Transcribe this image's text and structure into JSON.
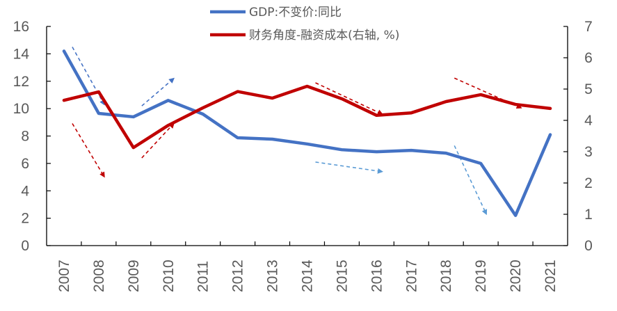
{
  "chart_data": {
    "type": "line",
    "title": "",
    "xlabel": "",
    "ylabel": "",
    "ylabel_right": "",
    "categories": [
      "2007",
      "2008",
      "2009",
      "2010",
      "2011",
      "2012",
      "2013",
      "2014",
      "2015",
      "2016",
      "2017",
      "2018",
      "2019",
      "2020",
      "2021"
    ],
    "ylim": [
      0,
      16
    ],
    "ylim_right": [
      0,
      7
    ],
    "yticks": [
      0,
      2,
      4,
      6,
      8,
      10,
      12,
      14,
      16
    ],
    "yticks_right": [
      0,
      1,
      2,
      3,
      4,
      5,
      6,
      7
    ],
    "grid": false,
    "legend_position": "top-center",
    "series": [
      {
        "name": "GDP:不变价:同比",
        "axis": "left",
        "color": "#4472C4",
        "values": [
          14.2,
          9.65,
          9.4,
          10.6,
          9.6,
          7.87,
          7.77,
          7.42,
          7.0,
          6.85,
          6.95,
          6.75,
          6.0,
          2.2,
          8.1
        ]
      },
      {
        "name": "财务角度-融资成本(右轴, %)",
        "axis": "right",
        "color": "#C00000",
        "values": [
          4.64,
          4.91,
          3.13,
          3.84,
          4.4,
          4.92,
          4.71,
          5.09,
          4.69,
          4.16,
          4.24,
          4.6,
          4.82,
          4.51,
          4.38
        ]
      }
    ],
    "annotations": [
      {
        "type": "arrow",
        "color": "#4472C4",
        "from": {
          "x": "2007",
          "y_left": 14.5
        },
        "to": {
          "x": "2008",
          "y_left": 10.3
        }
      },
      {
        "type": "arrow",
        "color": "#4472C4",
        "from": {
          "x": "2009",
          "y_left": 10.2
        },
        "to": {
          "x": "2010",
          "y_left": 12.2
        }
      },
      {
        "type": "arrow",
        "color": "#5B9BD5",
        "from": {
          "x": "2014",
          "y_left": 6.1
        },
        "to": {
          "x": "2016",
          "y_left": 5.4
        }
      },
      {
        "type": "arrow",
        "color": "#5B9BD5",
        "from": {
          "x": "2018",
          "y_left": 7.3
        },
        "to": {
          "x": "2019",
          "y_left": 2.3
        }
      },
      {
        "type": "arrow",
        "color": "#C00000",
        "from": {
          "x": "2007",
          "y_right": 3.9
        },
        "to": {
          "x": "2008",
          "y_right": 2.2
        }
      },
      {
        "type": "arrow",
        "color": "#C00000",
        "from": {
          "x": "2009",
          "y_right": 2.8
        },
        "to": {
          "x": "2010",
          "y_right": 3.9
        }
      },
      {
        "type": "arrow",
        "color": "#C00000",
        "from": {
          "x": "2014",
          "y_right": 5.2
        },
        "to": {
          "x": "2016",
          "y_right": 4.2
        }
      },
      {
        "type": "arrow",
        "color": "#C00000",
        "from": {
          "x": "2018",
          "y_right": 5.35
        },
        "to": {
          "x": "2020",
          "y_right": 4.4
        }
      }
    ]
  }
}
